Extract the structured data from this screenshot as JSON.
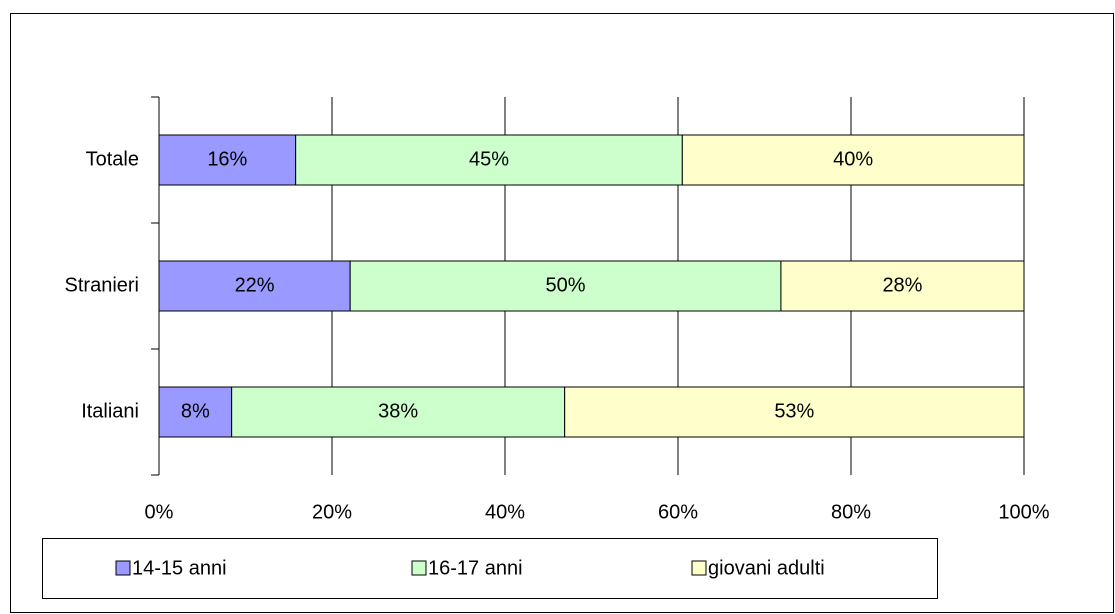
{
  "chart_data": {
    "type": "stacked-bar-horizontal",
    "categories": [
      "Totale",
      "Stranieri",
      "Italiani"
    ],
    "series": [
      {
        "name": "14-15 anni",
        "color": "#9999ff",
        "values": [
          15.8,
          22.1,
          8.4
        ],
        "value_labels": [
          "16%",
          "22%",
          "8%"
        ]
      },
      {
        "name": "16-17 anni",
        "color": "#ccffcc",
        "values": [
          44.7,
          49.8,
          38.5
        ],
        "value_labels": [
          "45%",
          "50%",
          "38%"
        ]
      },
      {
        "name": "giovani adulti",
        "color": "#ffffcc",
        "values": [
          39.5,
          28.1,
          53.1
        ],
        "value_labels": [
          "40%",
          "28%",
          "53%"
        ]
      }
    ],
    "xlim": [
      0,
      100
    ],
    "xticks": [
      {
        "value": 0,
        "label": "0%"
      },
      {
        "value": 20,
        "label": "20%"
      },
      {
        "value": 40,
        "label": "40%"
      },
      {
        "value": 60,
        "label": "60%"
      },
      {
        "value": 80,
        "label": "80%"
      },
      {
        "value": 100,
        "label": "100%"
      }
    ],
    "grid": true,
    "legend": "bottom"
  }
}
